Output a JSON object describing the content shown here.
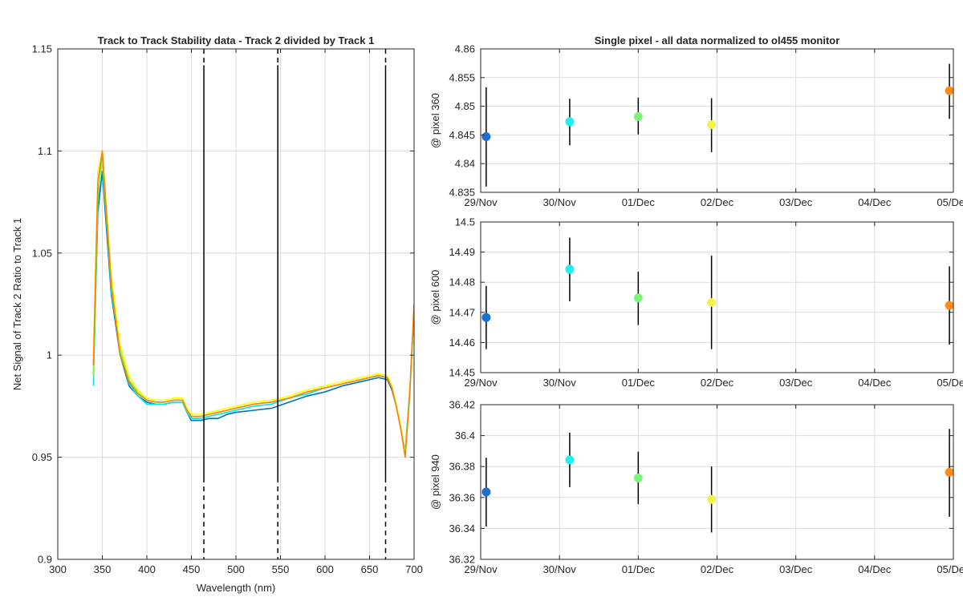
{
  "figure": {
    "background": "#ffffff"
  },
  "chart_data": [
    {
      "type": "line",
      "title": "Track to Track Stability data - Track 2 divided by Track 1",
      "xlabel": "Wavelength (nm)",
      "ylabel": "Net Signal of Track 2 Ratio to Track 1",
      "xlim": [
        300,
        700
      ],
      "ylim": [
        0.9,
        1.15
      ],
      "xticks": [
        300,
        350,
        400,
        450,
        500,
        550,
        600,
        650,
        700
      ],
      "yticks": [
        0.9,
        0.95,
        1,
        1.05,
        1.1,
        1.15
      ],
      "ytick_labels": [
        "0.9",
        "0.95",
        "1",
        "1.05",
        "1.1",
        "1.15"
      ],
      "grid": true,
      "series": [
        {
          "color": "#0072bd",
          "x": [
            340,
            345,
            350,
            360,
            370,
            380,
            390,
            400,
            410,
            420,
            430,
            440,
            445,
            450,
            460,
            470,
            480,
            490,
            500,
            520,
            540,
            560,
            580,
            600,
            620,
            640,
            660,
            670,
            675,
            680,
            685,
            690,
            695,
            700
          ],
          "y": [
            0.99,
            1.07,
            1.09,
            1.03,
            1.0,
            0.985,
            0.98,
            0.977,
            0.976,
            0.976,
            0.977,
            0.977,
            0.972,
            0.968,
            0.968,
            0.969,
            0.969,
            0.971,
            0.972,
            0.973,
            0.974,
            0.977,
            0.98,
            0.982,
            0.985,
            0.987,
            0.989,
            0.988,
            0.983,
            0.975,
            0.965,
            0.952,
            0.98,
            1.022
          ]
        },
        {
          "color": "#00e5ee",
          "x": [
            340,
            345,
            350,
            360,
            370,
            380,
            390,
            400,
            410,
            420,
            430,
            440,
            445,
            450,
            460,
            470,
            480,
            490,
            500,
            520,
            540,
            560,
            580,
            600,
            620,
            640,
            660,
            670,
            675,
            680,
            685,
            690,
            695,
            700
          ],
          "y": [
            0.985,
            1.075,
            1.1,
            1.032,
            1.002,
            0.986,
            0.98,
            0.976,
            0.976,
            0.976,
            0.977,
            0.977,
            0.972,
            0.969,
            0.969,
            0.97,
            0.971,
            0.972,
            0.973,
            0.975,
            0.976,
            0.979,
            0.981,
            0.984,
            0.986,
            0.988,
            0.99,
            0.989,
            0.984,
            0.975,
            0.965,
            0.953,
            0.982,
            1.023
          ]
        },
        {
          "color": "#7cfc4a",
          "x": [
            340,
            345,
            350,
            360,
            370,
            380,
            390,
            400,
            410,
            420,
            430,
            440,
            445,
            450,
            460,
            470,
            480,
            490,
            500,
            520,
            540,
            560,
            580,
            600,
            620,
            640,
            660,
            670,
            675,
            680,
            685,
            690,
            695,
            700
          ],
          "y": [
            0.99,
            1.08,
            1.095,
            1.035,
            1.003,
            0.988,
            0.982,
            0.978,
            0.977,
            0.977,
            0.978,
            0.978,
            0.973,
            0.97,
            0.97,
            0.971,
            0.972,
            0.973,
            0.974,
            0.976,
            0.977,
            0.979,
            0.982,
            0.984,
            0.986,
            0.988,
            0.99,
            0.989,
            0.984,
            0.975,
            0.965,
            0.952,
            0.98,
            1.024
          ]
        },
        {
          "color": "#ffff00",
          "x": [
            340,
            345,
            350,
            360,
            370,
            380,
            390,
            400,
            410,
            420,
            430,
            440,
            445,
            450,
            460,
            470,
            480,
            490,
            500,
            520,
            540,
            560,
            580,
            600,
            620,
            640,
            660,
            670,
            675,
            680,
            685,
            690,
            695,
            700
          ],
          "y": [
            1.0,
            1.09,
            1.1,
            1.04,
            1.005,
            0.99,
            0.983,
            0.979,
            0.978,
            0.978,
            0.979,
            0.979,
            0.974,
            0.971,
            0.971,
            0.972,
            0.973,
            0.974,
            0.975,
            0.977,
            0.978,
            0.98,
            0.983,
            0.985,
            0.987,
            0.989,
            0.991,
            0.99,
            0.985,
            0.976,
            0.965,
            0.951,
            0.98,
            1.023
          ]
        },
        {
          "color": "#ff8000",
          "x": [
            340,
            345,
            350,
            360,
            370,
            380,
            390,
            400,
            410,
            420,
            430,
            440,
            445,
            450,
            460,
            470,
            480,
            490,
            500,
            520,
            540,
            560,
            580,
            600,
            620,
            640,
            660,
            670,
            675,
            680,
            685,
            690,
            695,
            700
          ],
          "y": [
            0.995,
            1.085,
            1.1,
            1.035,
            1.0,
            0.987,
            0.981,
            0.978,
            0.977,
            0.977,
            0.978,
            0.978,
            0.973,
            0.97,
            0.97,
            0.971,
            0.972,
            0.973,
            0.974,
            0.976,
            0.977,
            0.979,
            0.982,
            0.984,
            0.986,
            0.988,
            0.99,
            0.989,
            0.984,
            0.975,
            0.964,
            0.95,
            0.98,
            1.025
          ]
        }
      ],
      "vertical_markers": [
        {
          "x": 464,
          "solid_from": 1.142,
          "solid_to": 0.94
        },
        {
          "x": 547,
          "solid_from": 1.142,
          "solid_to": 0.94
        },
        {
          "x": 668,
          "solid_from": 1.142,
          "solid_to": 0.94
        }
      ]
    },
    {
      "type": "scatter",
      "title": "Single pixel - all data normalized to ol455 monitor",
      "xlabel": "",
      "ylabel": "@ pixel 360",
      "xlim": [
        0,
        6
      ],
      "ylim": [
        4.835,
        4.86
      ],
      "xticks": [
        0,
        1,
        2,
        3,
        4,
        5,
        6
      ],
      "xtick_labels": [
        "29/Nov",
        "30/Nov",
        "01/Dec",
        "02/Dec",
        "03/Dec",
        "04/Dec",
        "05/Dec"
      ],
      "yticks": [
        4.835,
        4.84,
        4.845,
        4.85,
        4.855,
        4.86
      ],
      "ytick_labels": [
        "4.835",
        "4.84",
        "4.845",
        "4.85",
        "4.855",
        "4.86"
      ],
      "grid": true,
      "points": [
        {
          "x": 0.07,
          "y": 4.8447,
          "lo": 4.836,
          "hi": 4.8533,
          "color": "#1b6fd1"
        },
        {
          "x": 1.13,
          "y": 4.8473,
          "lo": 4.8432,
          "hi": 4.8513,
          "color": "#1ff0f0"
        },
        {
          "x": 2.0,
          "y": 4.8482,
          "lo": 4.8451,
          "hi": 4.8515,
          "color": "#7cf47c"
        },
        {
          "x": 2.93,
          "y": 4.8468,
          "lo": 4.842,
          "hi": 4.8514,
          "color": "#f3f34a"
        },
        {
          "x": 5.95,
          "y": 4.8527,
          "lo": 4.8478,
          "hi": 4.8574,
          "color": "#f98c1c"
        }
      ]
    },
    {
      "type": "scatter",
      "title": "",
      "xlabel": "",
      "ylabel": "@ pixel 600",
      "xlim": [
        0,
        6
      ],
      "ylim": [
        14.45,
        14.5
      ],
      "xticks": [
        0,
        1,
        2,
        3,
        4,
        5,
        6
      ],
      "xtick_labels": [
        "29/Nov",
        "30/Nov",
        "01/Dec",
        "02/Dec",
        "03/Dec",
        "04/Dec",
        "05/Dec"
      ],
      "yticks": [
        14.45,
        14.46,
        14.47,
        14.48,
        14.49,
        14.5
      ],
      "ytick_labels": [
        "14.45",
        "14.46",
        "14.47",
        "14.48",
        "14.49",
        "14.5"
      ],
      "grid": true,
      "points": [
        {
          "x": 0.07,
          "y": 14.4683,
          "lo": 14.4578,
          "hi": 14.4788,
          "color": "#1b6fd1"
        },
        {
          "x": 1.13,
          "y": 14.4843,
          "lo": 14.4737,
          "hi": 14.4948,
          "color": "#1ff0f0"
        },
        {
          "x": 2.0,
          "y": 14.4748,
          "lo": 14.4658,
          "hi": 14.4835,
          "color": "#7cf47c"
        },
        {
          "x": 2.93,
          "y": 14.4733,
          "lo": 14.4578,
          "hi": 14.4888,
          "color": "#f3f34a"
        },
        {
          "x": 5.95,
          "y": 14.4723,
          "lo": 14.4593,
          "hi": 14.4853,
          "color": "#f98c1c"
        }
      ]
    },
    {
      "type": "scatter",
      "title": "",
      "xlabel": "",
      "ylabel": "@ pixel 940",
      "xlim": [
        0,
        6
      ],
      "ylim": [
        36.32,
        36.42
      ],
      "xticks": [
        0,
        1,
        2,
        3,
        4,
        5,
        6
      ],
      "xtick_labels": [
        "29/Nov",
        "30/Nov",
        "01/Dec",
        "02/Dec",
        "03/Dec",
        "04/Dec",
        "05/Dec"
      ],
      "yticks": [
        36.32,
        36.34,
        36.36,
        36.38,
        36.4,
        36.42
      ],
      "ytick_labels": [
        "36.32",
        "36.34",
        "36.36",
        "36.38",
        "36.4",
        "36.42"
      ],
      "grid": true,
      "points": [
        {
          "x": 0.07,
          "y": 36.3635,
          "lo": 36.3412,
          "hi": 36.3857,
          "color": "#1b6fd1"
        },
        {
          "x": 1.13,
          "y": 36.3843,
          "lo": 36.3667,
          "hi": 36.4019,
          "color": "#1ff0f0"
        },
        {
          "x": 2.0,
          "y": 36.3726,
          "lo": 36.3557,
          "hi": 36.3896,
          "color": "#7cf47c"
        },
        {
          "x": 2.93,
          "y": 36.3587,
          "lo": 36.3374,
          "hi": 36.38,
          "color": "#f3f34a"
        },
        {
          "x": 5.95,
          "y": 36.3763,
          "lo": 36.3475,
          "hi": 36.4043,
          "color": "#f98c1c"
        }
      ]
    }
  ]
}
